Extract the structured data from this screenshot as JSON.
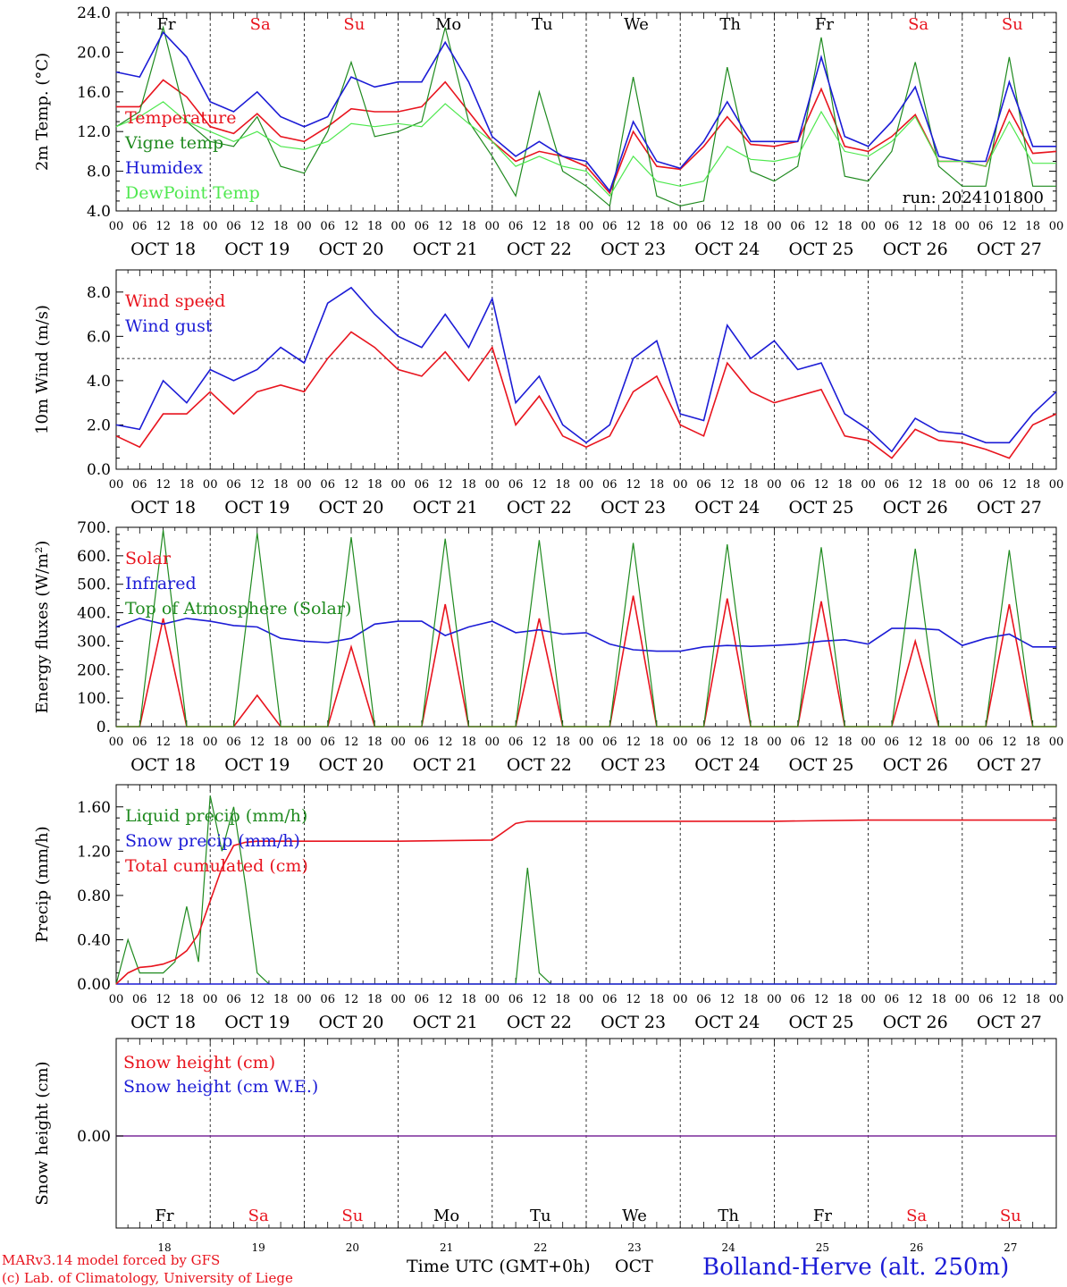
{
  "colors": {
    "red": "#e8141e",
    "green": "#1f8a1f",
    "blue": "#1c1cd6",
    "light_green": "#4fe84f",
    "purple": "#7a2a9a",
    "black": "#000000"
  },
  "x_axis": {
    "hour_ticks": [
      "00",
      "06",
      "12",
      "18"
    ],
    "dates": [
      "OCT 18",
      "OCT 19",
      "OCT 20",
      "OCT 21",
      "OCT 22",
      "OCT 23",
      "OCT 24",
      "OCT 25",
      "OCT 26",
      "OCT 27"
    ],
    "weekdays": [
      "Fr",
      "Sa",
      "Su",
      "Mo",
      "Tu",
      "We",
      "Th",
      "Fr",
      "Sa",
      "Su"
    ],
    "weekend_flags": [
      false,
      true,
      true,
      false,
      false,
      false,
      false,
      false,
      true,
      true
    ],
    "day_numbers": [
      "18",
      "19",
      "20",
      "21",
      "22",
      "23",
      "24",
      "25",
      "26",
      "27"
    ],
    "title": "Time UTC (GMT+0h)",
    "month": "OCT"
  },
  "footer": {
    "model": "MARv3.14 model forced by GFS",
    "credit": "(c) Lab. of Climatology, University of Liege",
    "station": "Bolland-Herve (alt. 250m)"
  },
  "chart_data": [
    {
      "type": "line",
      "ylabel": "2m Temp. (°C)",
      "ylim": [
        4.0,
        24.0
      ],
      "yticks": [
        "4.0",
        "8.0",
        "12.0",
        "16.0",
        "20.0",
        "24.0"
      ],
      "annotation": "run: 2024101800",
      "x_unit": "hours since Oct 18 00 UTC",
      "x": [
        0,
        6,
        12,
        18,
        24,
        30,
        36,
        42,
        48,
        54,
        60,
        66,
        72,
        78,
        84,
        90,
        96,
        102,
        108,
        114,
        120,
        126,
        132,
        138,
        144,
        150,
        156,
        162,
        168,
        174,
        180,
        186,
        192,
        198,
        204,
        210,
        216,
        222,
        228,
        234,
        240
      ],
      "series": [
        {
          "name": "Temperature",
          "color_key": "red",
          "values": [
            14.5,
            14.5,
            17.2,
            15.5,
            12.5,
            11.8,
            13.8,
            11.5,
            11.0,
            12.5,
            14.3,
            14.0,
            14.0,
            14.5,
            17.0,
            14.0,
            11.0,
            9.0,
            10.0,
            9.5,
            8.5,
            5.8,
            12.0,
            8.5,
            8.2,
            10.5,
            13.5,
            10.7,
            10.5,
            11.0,
            16.3,
            10.5,
            10.0,
            11.5,
            13.7,
            9.0,
            9.0,
            8.5,
            14.2,
            9.8,
            10.0
          ]
        },
        {
          "name": "Vigne temp",
          "color_key": "green",
          "values": [
            12.5,
            14.0,
            22.5,
            13.0,
            11.0,
            10.5,
            13.5,
            8.5,
            7.8,
            12.0,
            19.0,
            11.5,
            12.0,
            13.0,
            22.5,
            13.0,
            9.5,
            5.5,
            16.0,
            8.0,
            6.5,
            4.5,
            17.5,
            5.5,
            4.5,
            5.0,
            18.5,
            8.0,
            7.0,
            8.5,
            21.5,
            7.5,
            7.0,
            10.0,
            19.0,
            8.5,
            6.5,
            6.5,
            19.5,
            6.5,
            6.5
          ]
        },
        {
          "name": "Humidex",
          "color_key": "blue",
          "values": [
            18.0,
            17.5,
            22.0,
            19.5,
            15.0,
            14.0,
            16.0,
            13.5,
            12.5,
            13.5,
            17.5,
            16.5,
            17.0,
            17.0,
            21.0,
            17.0,
            11.5,
            9.5,
            11.0,
            9.5,
            9.0,
            6.0,
            13.0,
            9.0,
            8.3,
            11.0,
            15.0,
            11.0,
            11.0,
            11.0,
            19.5,
            11.5,
            10.5,
            13.0,
            16.5,
            9.5,
            9.0,
            9.0,
            17.0,
            10.5,
            10.5
          ]
        },
        {
          "name": "DewPoint Temp",
          "color_key": "light_green",
          "values": [
            12.5,
            13.5,
            15.0,
            13.0,
            12.0,
            11.0,
            12.0,
            10.5,
            10.2,
            11.0,
            12.8,
            12.5,
            12.8,
            12.5,
            14.8,
            12.8,
            11.0,
            8.5,
            9.5,
            8.5,
            8.0,
            5.5,
            9.5,
            7.0,
            6.5,
            7.0,
            10.5,
            9.2,
            9.0,
            9.5,
            14.0,
            10.0,
            9.5,
            11.0,
            13.5,
            9.0,
            9.0,
            8.5,
            13.0,
            8.8,
            8.8
          ]
        }
      ]
    },
    {
      "type": "line",
      "ylabel": "10m Wind (m/s)",
      "ylim": [
        0.0,
        9.0
      ],
      "yticks": [
        "0.0",
        "2.0",
        "4.0",
        "6.0",
        "8.0"
      ],
      "reference_line": 5.0,
      "x_unit": "hours since Oct 18 00 UTC",
      "x": [
        0,
        6,
        12,
        18,
        24,
        30,
        36,
        42,
        48,
        54,
        60,
        66,
        72,
        78,
        84,
        90,
        96,
        102,
        108,
        114,
        120,
        126,
        132,
        138,
        144,
        150,
        156,
        162,
        168,
        174,
        180,
        186,
        192,
        198,
        204,
        210,
        216,
        222,
        228,
        234,
        240
      ],
      "series": [
        {
          "name": "Wind speed",
          "color_key": "red",
          "values": [
            1.5,
            1.0,
            2.5,
            2.5,
            3.5,
            2.5,
            3.5,
            3.8,
            3.5,
            5.0,
            6.2,
            5.5,
            4.5,
            4.2,
            5.3,
            4.0,
            5.5,
            2.0,
            3.3,
            1.5,
            1.0,
            1.5,
            3.5,
            4.2,
            2.0,
            1.5,
            4.8,
            3.5,
            3.0,
            3.3,
            3.6,
            1.5,
            1.3,
            0.5,
            1.8,
            1.3,
            1.2,
            0.9,
            0.5,
            2.0,
            2.5
          ]
        },
        {
          "name": "Wind gust",
          "color_key": "blue",
          "values": [
            2.0,
            1.8,
            4.0,
            3.0,
            4.5,
            4.0,
            4.5,
            5.5,
            4.8,
            7.5,
            8.2,
            7.0,
            6.0,
            5.5,
            7.0,
            5.5,
            7.7,
            3.0,
            4.2,
            2.0,
            1.2,
            2.0,
            5.0,
            5.8,
            2.5,
            2.2,
            6.5,
            5.0,
            5.8,
            4.5,
            4.8,
            2.5,
            1.8,
            0.8,
            2.3,
            1.7,
            1.6,
            1.2,
            1.2,
            2.5,
            3.5
          ]
        }
      ]
    },
    {
      "type": "line",
      "ylabel": "Energy fluxes (W/m²)",
      "ylim": [
        0,
        700
      ],
      "yticks": [
        "0.",
        "100.",
        "200.",
        "300.",
        "400.",
        "500.",
        "600.",
        "700."
      ],
      "x_unit": "hours since Oct 18 00 UTC",
      "x": [
        0,
        6,
        12,
        18,
        24,
        30,
        36,
        42,
        48,
        54,
        60,
        66,
        72,
        78,
        84,
        90,
        96,
        102,
        108,
        114,
        120,
        126,
        132,
        138,
        144,
        150,
        156,
        162,
        168,
        174,
        180,
        186,
        192,
        198,
        204,
        210,
        216,
        222,
        228,
        234,
        240
      ],
      "series": [
        {
          "name": "Solar",
          "color_key": "red",
          "values": [
            0,
            0,
            380,
            0,
            0,
            0,
            110,
            0,
            0,
            0,
            280,
            0,
            0,
            0,
            430,
            0,
            0,
            0,
            380,
            0,
            0,
            0,
            460,
            0,
            0,
            0,
            450,
            0,
            0,
            0,
            440,
            0,
            0,
            0,
            300,
            0,
            0,
            0,
            430,
            0,
            0
          ]
        },
        {
          "name": "Infrared",
          "color_key": "blue",
          "values": [
            350,
            380,
            360,
            380,
            370,
            355,
            350,
            310,
            300,
            295,
            310,
            360,
            370,
            370,
            320,
            350,
            370,
            330,
            340,
            325,
            330,
            290,
            270,
            265,
            265,
            280,
            285,
            282,
            285,
            290,
            300,
            305,
            290,
            345,
            345,
            340,
            285,
            310,
            325,
            280,
            280
          ]
        },
        {
          "name": "Top of Atmosphere (Solar)",
          "color_key": "green",
          "values": [
            0,
            0,
            690,
            0,
            0,
            0,
            680,
            0,
            0,
            0,
            665,
            0,
            0,
            0,
            660,
            0,
            0,
            0,
            655,
            0,
            0,
            0,
            645,
            0,
            0,
            0,
            640,
            0,
            0,
            0,
            630,
            0,
            0,
            0,
            625,
            0,
            0,
            0,
            620,
            0,
            0
          ]
        }
      ]
    },
    {
      "type": "line",
      "ylabel": "Precip (mm/h)",
      "ylim": [
        0.0,
        1.8
      ],
      "yticks": [
        "0.00",
        "0.40",
        "0.80",
        "1.20",
        "1.60"
      ],
      "x_unit": "hours since Oct 18 00 UTC",
      "x": [
        0,
        3,
        6,
        9,
        12,
        15,
        18,
        21,
        24,
        27,
        30,
        33,
        36,
        39,
        42,
        48,
        72,
        96,
        102,
        105,
        108,
        111,
        114,
        120,
        144,
        168,
        192,
        216,
        240
      ],
      "series": [
        {
          "name": "Liquid precip (mm/h)",
          "color_key": "green",
          "values": [
            0.0,
            0.4,
            0.1,
            0.1,
            0.1,
            0.2,
            0.7,
            0.2,
            1.7,
            1.2,
            1.6,
            0.9,
            0.1,
            0.0,
            0.0,
            0.0,
            0.0,
            0.0,
            0.0,
            1.05,
            0.1,
            0.0,
            0.0,
            0.0,
            0.0,
            0.0,
            0.0,
            0.0,
            0.0
          ]
        },
        {
          "name": "Snow precip (mm/h)",
          "color_key": "blue",
          "values": [
            0,
            0,
            0,
            0,
            0,
            0,
            0,
            0,
            0,
            0,
            0,
            0,
            0,
            0,
            0,
            0,
            0,
            0,
            0,
            0,
            0,
            0,
            0,
            0,
            0,
            0,
            0,
            0,
            0
          ]
        },
        {
          "name": "Total cumulated (cm)",
          "color_key": "red",
          "values": [
            0.0,
            0.1,
            0.15,
            0.16,
            0.18,
            0.22,
            0.3,
            0.45,
            0.75,
            1.05,
            1.25,
            1.28,
            1.29,
            1.29,
            1.29,
            1.29,
            1.29,
            1.3,
            1.45,
            1.47,
            1.47,
            1.47,
            1.47,
            1.47,
            1.47,
            1.47,
            1.48,
            1.48,
            1.48
          ]
        }
      ]
    },
    {
      "type": "line",
      "ylabel": "Snow height (cm)",
      "yticks": [
        "0.00"
      ],
      "x_unit": "hours since Oct 18 00 UTC",
      "x": [
        0,
        240
      ],
      "series": [
        {
          "name": "Snow height (cm)",
          "color_key": "red",
          "values": [
            0,
            0
          ]
        },
        {
          "name": "Snow height (cm W.E.)",
          "color_key": "blue",
          "values": [
            0,
            0
          ]
        }
      ]
    }
  ]
}
